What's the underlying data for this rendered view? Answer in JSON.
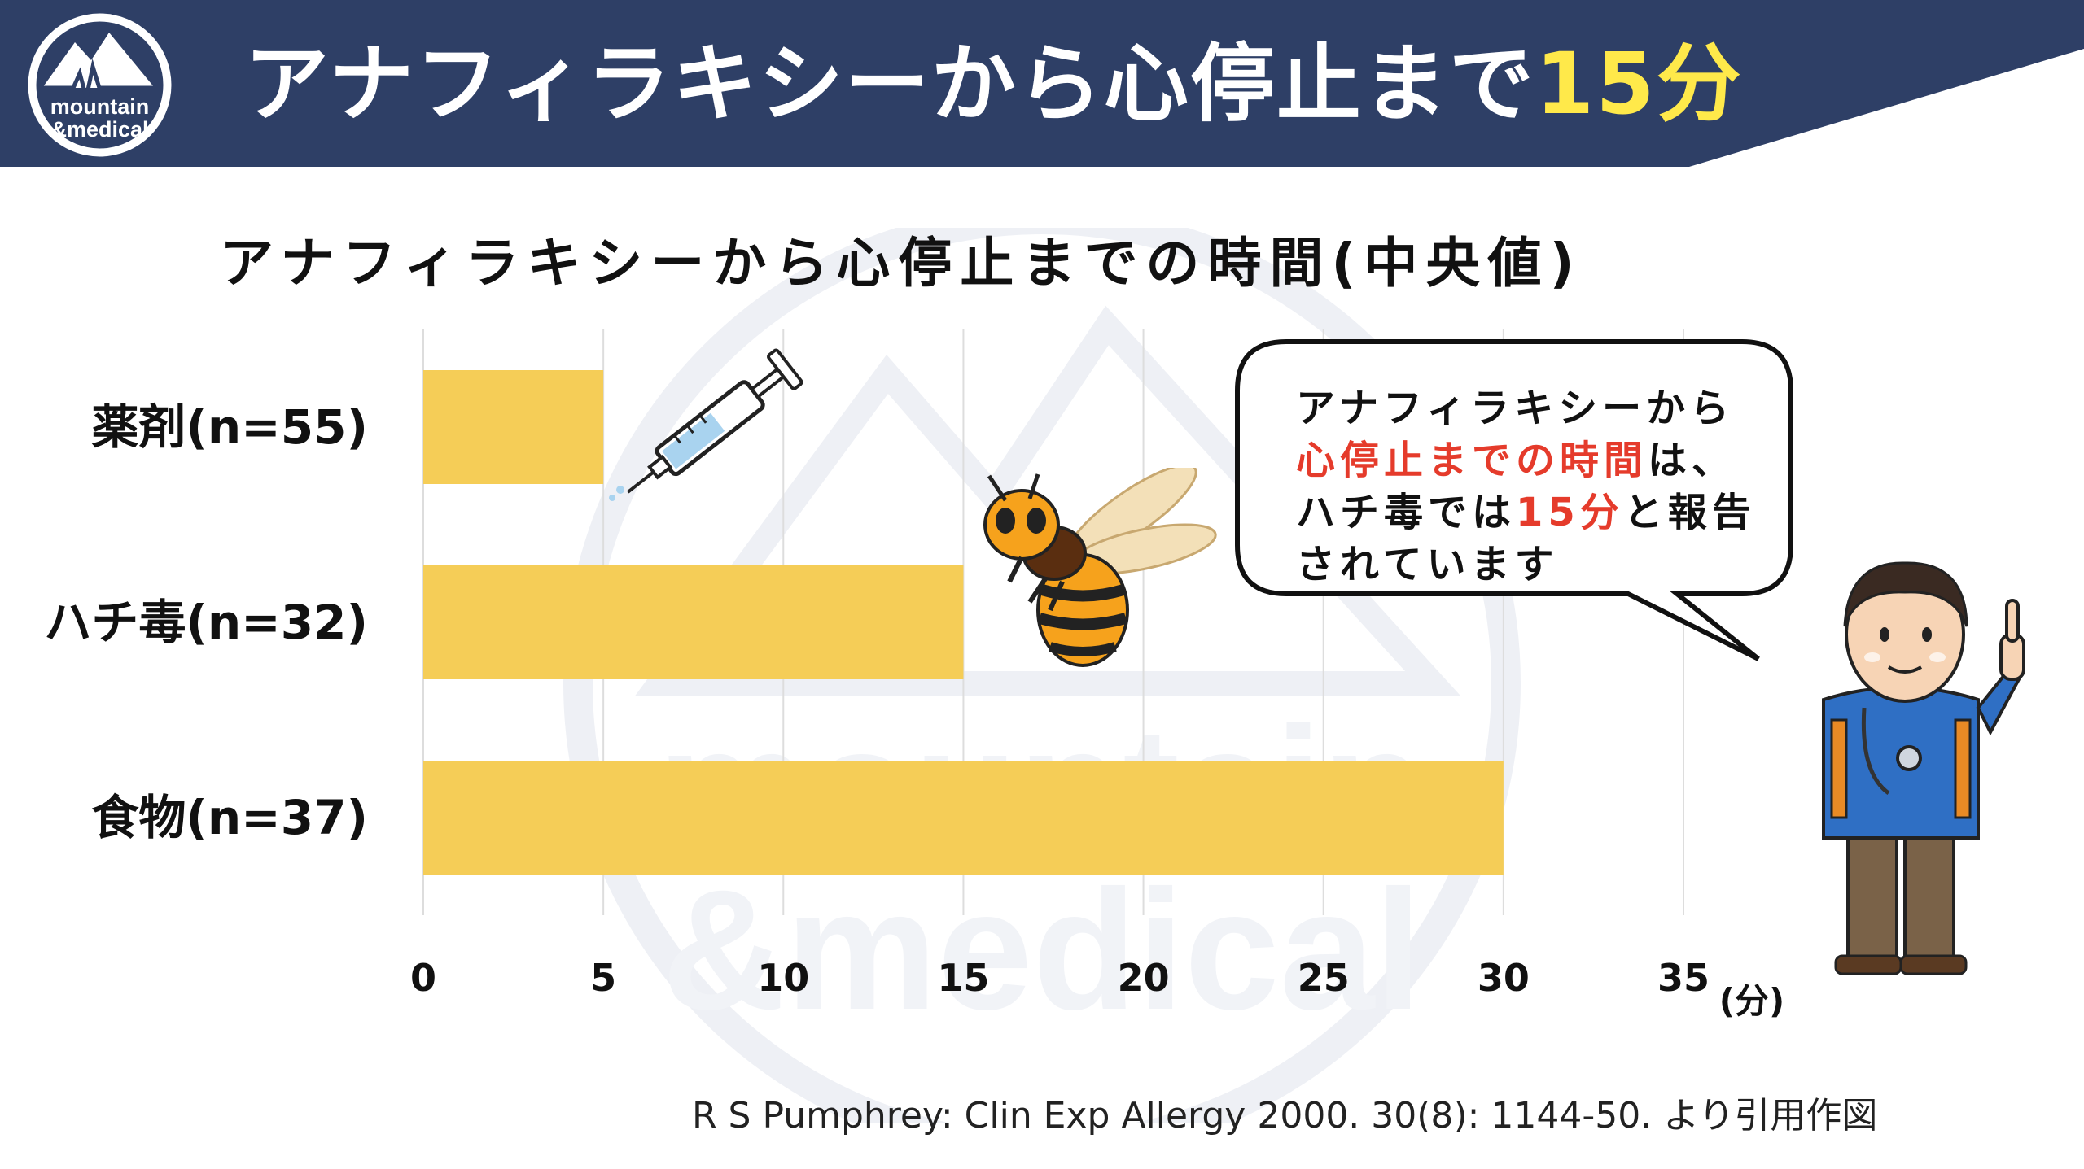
{
  "header": {
    "title_main": "アナフィラキシーから心停止まで",
    "title_highlight": "15分",
    "logo_line1": "mountain",
    "logo_line2": "&medical",
    "bg_color": "#2e3f66",
    "highlight_color": "#ffe94a"
  },
  "watermark": {
    "line1": "mountain",
    "line2": "&medical"
  },
  "speech_bubble": {
    "line1": "アナフィラキシーから",
    "line2_red": "心停止までの時間",
    "line2_rest": "は、",
    "line3_pre": "ハチ毒では",
    "line3_highlight": "15分",
    "line3_post": "と報告",
    "line4": "されています"
  },
  "citation": "R S Pumphrey: Clin Exp Allergy 2000. 30(8): 1144-50. より引用作図",
  "chart_data": {
    "type": "bar",
    "orientation": "horizontal",
    "title": "アナフィラキシーから心停止までの時間(中央値)",
    "categories": [
      "薬剤(n=55)",
      "ハチ毒(n=32)",
      "食物(n=37)"
    ],
    "values": [
      5,
      15,
      30
    ],
    "xlim": [
      0,
      35
    ],
    "xticks": [
      "0",
      "5",
      "10",
      "15",
      "20",
      "25",
      "30",
      "35"
    ],
    "xunit": "(分)",
    "bar_color": "#f5cd57",
    "grid": true
  }
}
